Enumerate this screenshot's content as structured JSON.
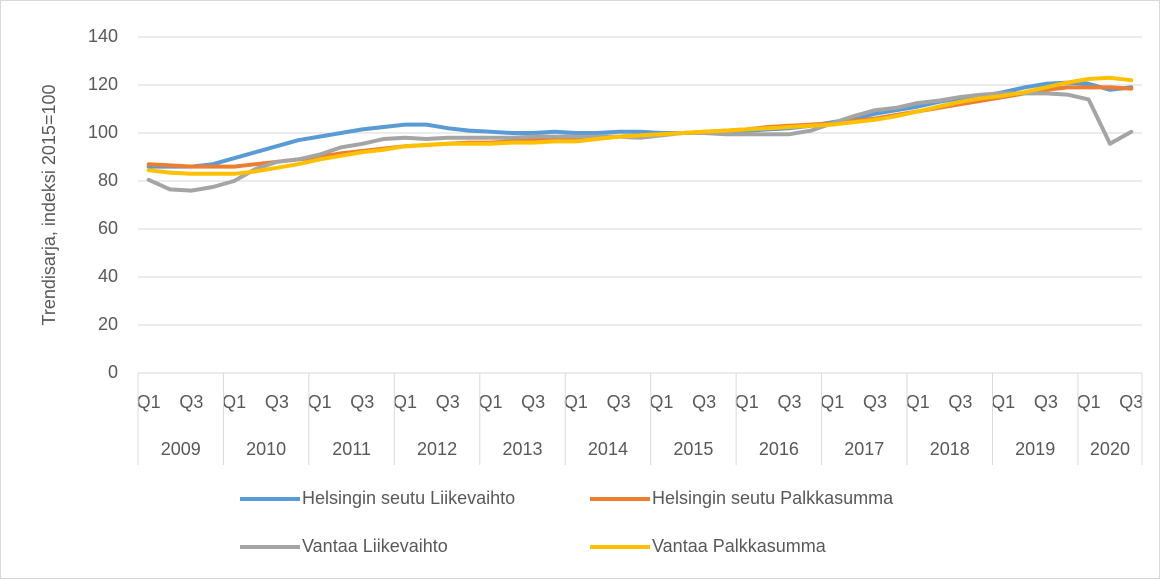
{
  "chart_data": {
    "type": "line",
    "y_label": "Trendisarja, indeksi 2015=100",
    "categories": [
      "Q1",
      null,
      "Q3",
      null,
      "Q1",
      null,
      "Q3",
      null,
      "Q1",
      null,
      "Q3",
      null,
      "Q1",
      null,
      "Q3",
      null,
      "Q1",
      null,
      "Q3",
      null,
      "Q1",
      null,
      "Q3",
      null,
      "Q1",
      null,
      "Q3",
      null,
      "Q1",
      null,
      "Q3",
      null,
      "Q1",
      null,
      "Q3",
      null,
      "Q1",
      null,
      "Q3",
      null,
      "Q1",
      null,
      "Q3",
      null,
      "Q1",
      null,
      "Q3"
    ],
    "category_groups": [
      "2009",
      "2010",
      "2011",
      "2012",
      "2013",
      "2014",
      "2015",
      "2016",
      "2017",
      "2018",
      "2019",
      "2020"
    ],
    "ylim": [
      0,
      140
    ],
    "yticks": [
      0,
      20,
      40,
      60,
      80,
      100,
      120,
      140
    ],
    "grid": true,
    "legend": "bottom",
    "series": [
      {
        "name": "Helsingin seutu Liikevaihto",
        "color": "#5b9bd5",
        "values": [
          86,
          86,
          86,
          87,
          89.5,
          92,
          94.5,
          97,
          98.5,
          100,
          101.5,
          102.5,
          103.5,
          103.5,
          102,
          101,
          100.5,
          100,
          100,
          100.5,
          100,
          100,
          100.5,
          100.5,
          100,
          100,
          100,
          100.5,
          101,
          101.5,
          102,
          103,
          104.5,
          106,
          108,
          109.5,
          111,
          113,
          114.5,
          115.5,
          117,
          119,
          120.5,
          121,
          120.5,
          118,
          119
        ]
      },
      {
        "name": "Helsingin seutu Palkkasumma",
        "color": "#ed7d31",
        "values": [
          87,
          86.5,
          86,
          86,
          86,
          87,
          88,
          89,
          90,
          91.5,
          92.5,
          93.5,
          94.5,
          95,
          95.5,
          96,
          96,
          96.5,
          97,
          97.5,
          97.5,
          98,
          98.5,
          99,
          99.5,
          100,
          100.5,
          101,
          101.5,
          102.5,
          103,
          103.5,
          104,
          105,
          106,
          107.5,
          109,
          110.5,
          112,
          113.5,
          115,
          116.5,
          118,
          119,
          119,
          119,
          118.5
        ]
      },
      {
        "name": "Vantaa Liikevaihto",
        "color": "#a5a5a5",
        "values": [
          80.5,
          76.5,
          76,
          77.5,
          80,
          85,
          88,
          89,
          91,
          94,
          95.5,
          97.5,
          98,
          97.5,
          98,
          98,
          98,
          98,
          98.5,
          98.5,
          98.5,
          98.5,
          98.5,
          98,
          99,
          100,
          100,
          99.5,
          99.5,
          99.5,
          99.5,
          101,
          104,
          107,
          109.5,
          110.5,
          112.5,
          113.5,
          115,
          116,
          116.5,
          116.5,
          116.5,
          116,
          114,
          95.5,
          100.5
        ]
      },
      {
        "name": "Vantaa Palkkasumma",
        "color": "#ffc000",
        "values": [
          84.5,
          83.5,
          83,
          83,
          83,
          84,
          85.5,
          87,
          89,
          90.5,
          92,
          93,
          94.5,
          95,
          95.5,
          95.5,
          95.5,
          96,
          96,
          96.5,
          96.5,
          97.5,
          98.5,
          99,
          99.5,
          100,
          100.5,
          101,
          101.5,
          102,
          102.5,
          103,
          103.5,
          104.5,
          105.5,
          107,
          109,
          111,
          113,
          114.5,
          115.5,
          117,
          119,
          121,
          122.5,
          123,
          122
        ]
      }
    ]
  }
}
